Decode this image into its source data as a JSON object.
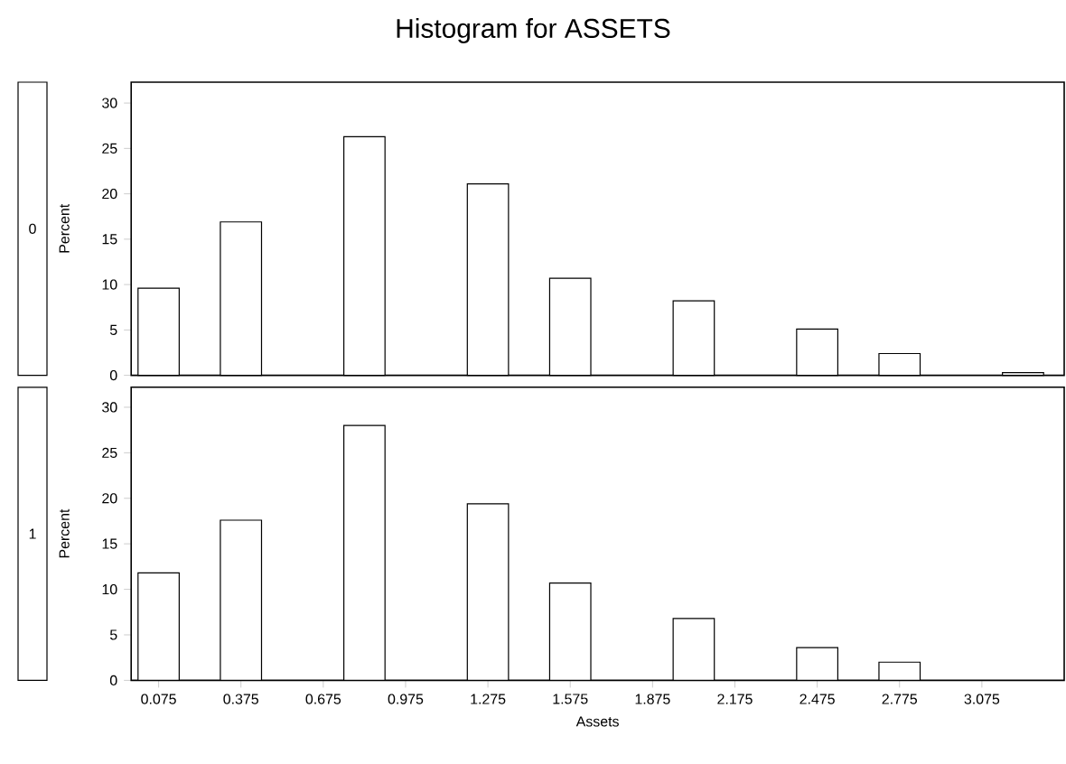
{
  "chart_data": [
    {
      "type": "bar",
      "title": "Histogram for ASSETS",
      "ylabel": "Percent",
      "annotations": [
        "0"
      ],
      "tick_labels": "y",
      "x": [
        0.075,
        0.375,
        0.825,
        1.275,
        1.575,
        2.025,
        2.475,
        2.775,
        3.225
      ],
      "series": [
        {
          "color": "#ffffff",
          "values": [
            9.6,
            16.9,
            26.3,
            21.1,
            10.7,
            8.2,
            5.1,
            2.4,
            0.3
          ]
        }
      ],
      "xlim": [
        -0.025,
        3.375
      ],
      "ylim": [
        0,
        32.3
      ],
      "yticks": [
        0,
        5,
        10,
        15,
        20,
        25,
        30
      ]
    },
    {
      "type": "bar",
      "xlabel": "Assets",
      "ylabel": "Percent",
      "annotations": [
        "1"
      ],
      "x": [
        0.075,
        0.375,
        0.825,
        1.275,
        1.575,
        2.025,
        2.475,
        2.775
      ],
      "series": [
        {
          "color": "#ffffff",
          "values": [
            11.8,
            17.6,
            28.0,
            19.4,
            10.7,
            6.8,
            3.6,
            2.0
          ]
        }
      ],
      "xlim": [
        -0.025,
        3.375
      ],
      "ylim": [
        0,
        32.2
      ],
      "yticks": [
        0,
        5,
        10,
        15,
        20,
        25,
        30
      ],
      "xticks": [
        0.075,
        0.375,
        0.675,
        0.975,
        1.275,
        1.575,
        1.875,
        2.175,
        2.475,
        2.775,
        3.075
      ]
    }
  ]
}
